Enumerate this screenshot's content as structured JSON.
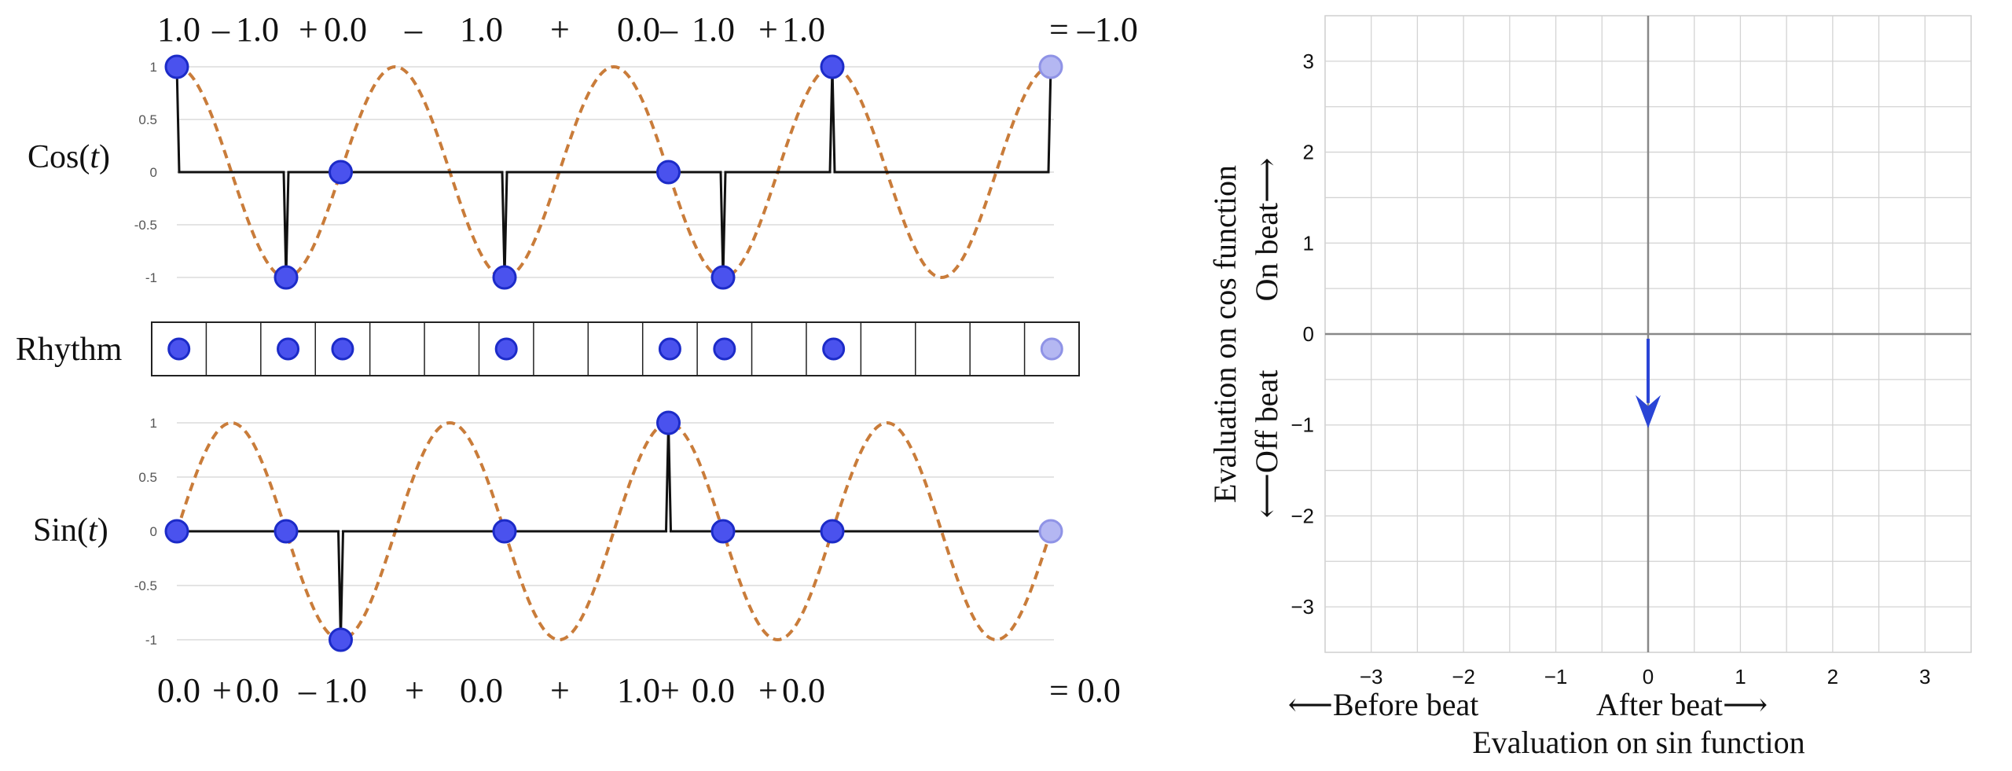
{
  "labels": {
    "cos": "Cos(t)",
    "rhythm": "Rhythm",
    "sin": "Sin(t)"
  },
  "cos_equation": {
    "terms": [
      "1.0",
      "–",
      "1.0",
      "+",
      "0.0",
      "–",
      "1.0",
      "+",
      "0.0",
      "–",
      "1.0",
      "+",
      "1.0"
    ],
    "result": "= –1.0"
  },
  "sin_equation": {
    "terms": [
      "0.0",
      "+",
      "0.0",
      "–",
      "1.0",
      "+",
      "0.0",
      "+",
      "1.0",
      "+",
      "0.0",
      "+",
      "0.0"
    ],
    "result": "= 0.0"
  },
  "rhythm": {
    "steps": 16,
    "onsets": [
      0,
      2,
      3,
      6,
      9,
      10,
      12
    ],
    "ghost_onset": 16
  },
  "wave_plot": {
    "y_ticks": [
      "1",
      "0.5",
      "0",
      "-0.5",
      "-1"
    ],
    "y_values": [
      1,
      0.5,
      0,
      -0.5,
      -1
    ],
    "cycles_per_bar": 4
  },
  "chart_data": {
    "type": "vector",
    "xlim": [
      -3.5,
      3.5
    ],
    "ylim": [
      -3.5,
      3.5
    ],
    "x_ticks": [
      "−3",
      "−2",
      "−1",
      "0",
      "1",
      "2",
      "3"
    ],
    "y_ticks": [
      "3",
      "2",
      "1",
      "0",
      "−1",
      "−2",
      "−3"
    ],
    "tick_values": [
      -3,
      -2,
      -1,
      0,
      1,
      2,
      3
    ],
    "grid": true,
    "vector": {
      "x": 0.0,
      "y": -1.0
    },
    "xlabel_left": "⟵Before beat",
    "xlabel_right": "After beat⟶",
    "xlabel": "Evaluation on sin function",
    "ylabel": "Evaluation on cos function",
    "ylabel_up": "On beat⟶",
    "ylabel_down": "⟵Off beat"
  },
  "colors": {
    "onset_fill": "#4a52ee",
    "onset_stroke": "#1c2bc8",
    "ghost_fill": "#b4b7f2",
    "ghost_stroke": "#8f93e6",
    "wave": "#c97c3a",
    "pulse": "#111111",
    "arrow": "#2a45d6",
    "grid": "#d3d3d3",
    "axis": "#888888"
  }
}
